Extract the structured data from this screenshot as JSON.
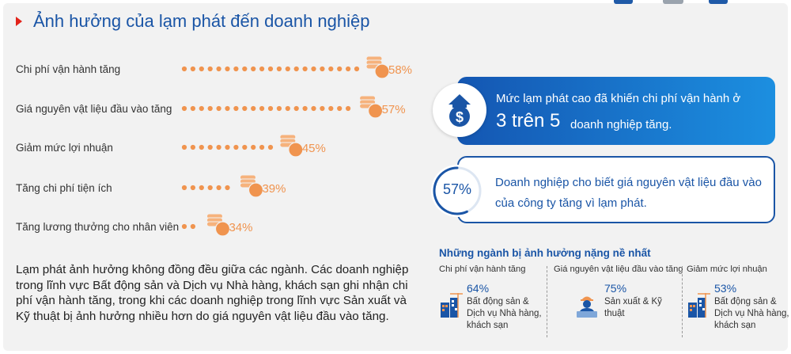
{
  "title": "Ảnh hưởng của lạm phát đến doanh nghiệp",
  "chart_data": {
    "type": "bar",
    "categories": [
      "Chi phí vận hành tăng",
      "Giá nguyên vật liệu đầu vào tăng",
      "Giảm mức lợi nhuận",
      "Tăng chi phí tiện ích",
      "Tăng lương thưởng cho nhân viên"
    ],
    "values": [
      58,
      57,
      45,
      39,
      34
    ],
    "value_labels": [
      "58%",
      "57%",
      "45%",
      "39%",
      "34%"
    ],
    "xlim": [
      0,
      100
    ],
    "grid": false,
    "colors": {
      "dots": "#f0944f",
      "coins": "#f0944f",
      "value_text": "#f0944f"
    }
  },
  "description": "Lạm phát ảnh hưởng không đồng đều giữa các ngành. Các doanh nghiệp trong lĩnh vực Bất động sản và Dịch vụ Nhà hàng, khách sạn ghi nhận chi phí vận hành tăng, trong khi các doanh nghiệp trong lĩnh vực Sản xuất và Kỹ thuật bị ảnh hưởng nhiều hơn do giá nguyên vật liệu đầu vào tăng.",
  "card_operating": {
    "line1": "Mức lạm phát cao đã khiến chi phí vận hành ở",
    "big": "3 trên 5",
    "rest": "doanh nghiệp tăng.",
    "icon": "house-dollar-icon"
  },
  "card_materials": {
    "percent": "57%",
    "percent_value": 57,
    "text": "Doanh nghiệp cho biết giá nguyên vật liệu đầu vào của công ty tăng vì lạm phát."
  },
  "industries": {
    "title": "Những ngành bị ảnh hưởng nặng nề nhất",
    "items": [
      {
        "category": "Chi phí vận hành tăng",
        "percent": "64%",
        "label": "Bất động sản & Dịch vụ Nhà hàng, khách sạn",
        "icon": "buildings-crane-icon"
      },
      {
        "category": "Giá nguyên vật liệu đầu vào tăng",
        "percent": "75%",
        "label": "Sản xuất & Kỹ thuật",
        "icon": "engineer-laptop-icon"
      },
      {
        "category": "Giảm mức lợi nhuận",
        "percent": "53%",
        "label": "Bất động sản & Dịch vụ Nhà hàng, khách sạn",
        "icon": "buildings-crane-icon"
      }
    ]
  },
  "colors": {
    "brand_blue": "#1a55a6",
    "accent_orange": "#f0944f",
    "marker_red": "#e2231a",
    "background": "#f2f2f2"
  }
}
